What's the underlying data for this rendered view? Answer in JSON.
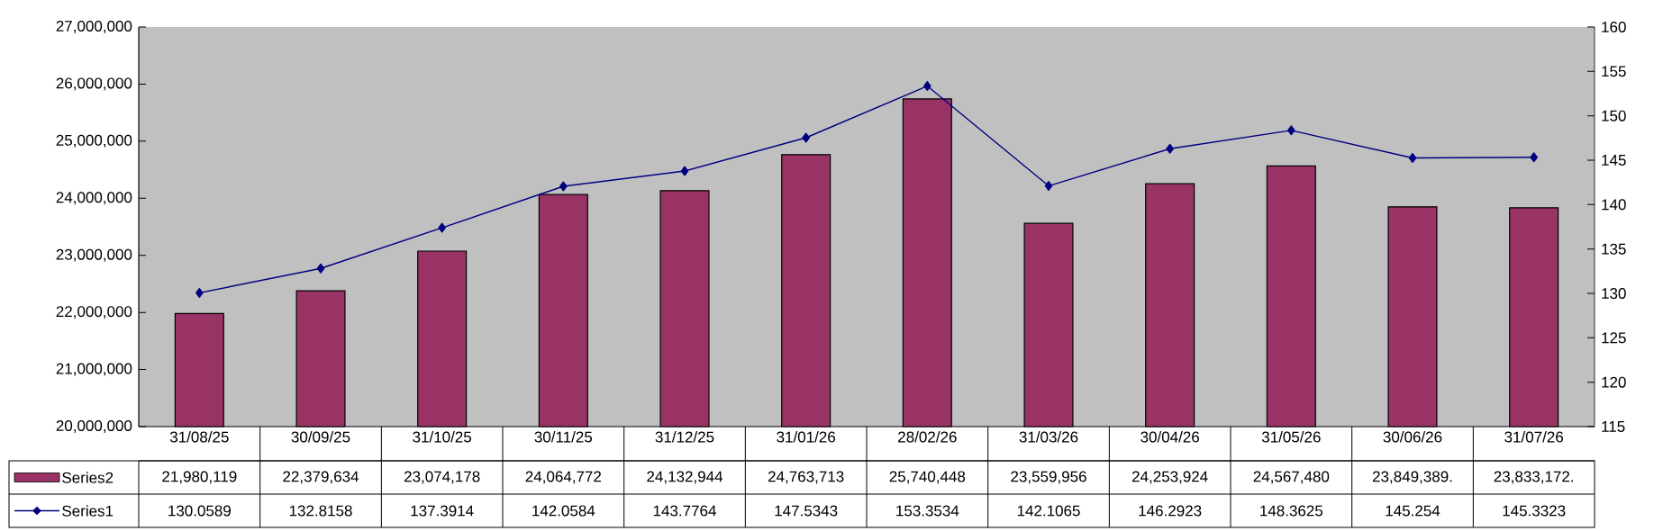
{
  "chart_data": {
    "type": "bar",
    "categories": [
      "31/08/25",
      "30/09/25",
      "31/10/25",
      "30/11/25",
      "31/12/25",
      "31/01/26",
      "28/02/26",
      "31/03/26",
      "30/04/26",
      "31/05/26",
      "30/06/26",
      "31/07/26"
    ],
    "series": [
      {
        "name": "Series2",
        "color": "#993366",
        "values": [
          21980119,
          22379634,
          23074178,
          24064772,
          24132944,
          24763713,
          25740448,
          23559956,
          24253924,
          24567480,
          23849389,
          23833172
        ],
        "value_labels": [
          "21,980,119",
          "22,379,634",
          "23,074,178",
          "24,064,772",
          "24,132,944",
          "24,763,713",
          "25,740,448",
          "23,559,956",
          "24,253,924",
          "24,567,480",
          "23,849,389.",
          "23,833,172."
        ]
      },
      {
        "name": "Series1",
        "type": "line",
        "axis": "y2",
        "color": "#000080",
        "marker": "diamond",
        "values": [
          130.0589,
          132.8158,
          137.3914,
          142.0584,
          143.7764,
          147.5343,
          153.3534,
          142.1065,
          146.2923,
          148.3625,
          145.254,
          145.3323
        ],
        "value_labels": [
          "130.0589",
          "132.8158",
          "137.3914",
          "142.0584",
          "143.7764",
          "147.5343",
          "153.3534",
          "142.1065",
          "146.2923",
          "148.3625",
          "145.254",
          "145.3323"
        ]
      }
    ],
    "ylim": [
      20000000,
      27000000
    ],
    "yticks": [
      {
        "value": 20000000,
        "label": "20,000,000"
      },
      {
        "value": 21000000,
        "label": "21,000,000"
      },
      {
        "value": 22000000,
        "label": "22,000,000"
      },
      {
        "value": 23000000,
        "label": "23,000,000"
      },
      {
        "value": 24000000,
        "label": "24,000,000"
      },
      {
        "value": 25000000,
        "label": "25,000,000"
      },
      {
        "value": 26000000,
        "label": "26,000,000"
      },
      {
        "value": 27000000,
        "label": "27,000,000"
      }
    ],
    "y2lim": [
      115,
      160
    ],
    "y2ticks": [
      115,
      120,
      125,
      130,
      135,
      140,
      145,
      150,
      155,
      160
    ],
    "grid": false,
    "legend": "bottom"
  }
}
